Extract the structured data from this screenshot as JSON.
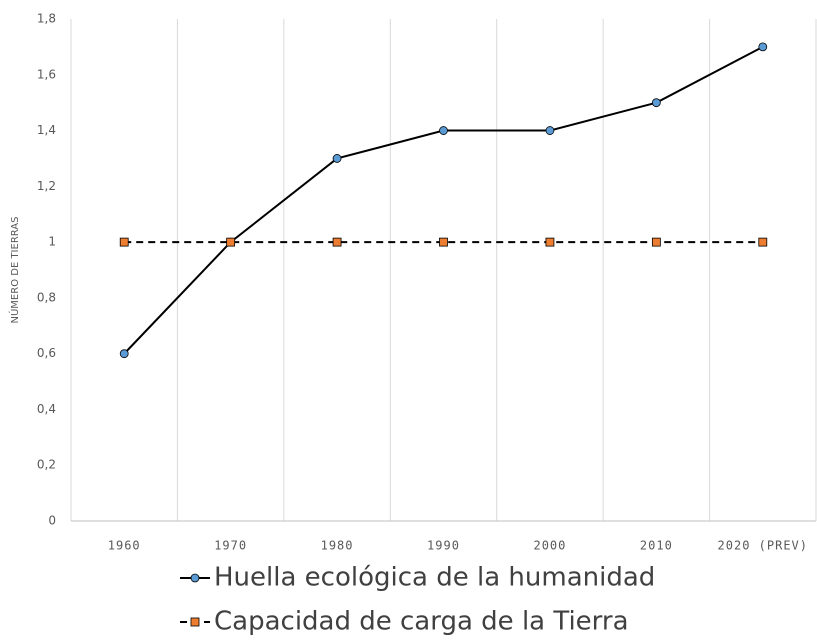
{
  "chart_data": {
    "type": "line",
    "y_label": "NÚMERO DE TIERRAS",
    "categories": [
      "1960",
      "1970",
      "1980",
      "1990",
      "2000",
      "2010",
      "2020 (PREV)"
    ],
    "series": [
      {
        "name": "Huella ecológica de la humanidad",
        "color": "#5b9bd5",
        "line_color": "#000000",
        "marker": "circle",
        "dash": false,
        "values": [
          0.6,
          1,
          1.3,
          1.4,
          1.4,
          1.5,
          1.7
        ]
      },
      {
        "name": "Capacidad de carga de la Tierra",
        "color": "#ed7d31",
        "line_color": "#000000",
        "marker": "square",
        "dash": true,
        "values": [
          1,
          1,
          1,
          1,
          1,
          1,
          1
        ]
      }
    ],
    "ylim": [
      0,
      1.8
    ],
    "yticks": [
      0,
      {
        "value": 0.2,
        "label": "0,2"
      },
      {
        "value": 0.4,
        "label": "0,4"
      },
      {
        "value": 0.6,
        "label": "0,6"
      },
      {
        "value": 0.8,
        "label": "0,8"
      },
      1,
      {
        "value": 1.2,
        "label": "1,2"
      },
      {
        "value": 1.4,
        "label": "1,4"
      },
      {
        "value": 1.6,
        "label": "1,6"
      },
      {
        "value": 1.8,
        "label": "1,8"
      }
    ],
    "grid": true
  }
}
